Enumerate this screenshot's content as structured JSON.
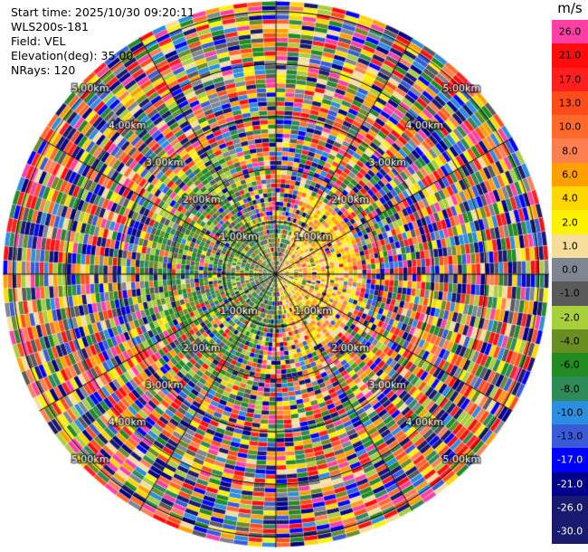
{
  "header": {
    "start_time": "Start time: 2025/10/30 09:20:11",
    "station": "WLS200s-181",
    "field": "Field: VEL",
    "elevation": "Elevation(deg): 35.00",
    "nrays": "NRays: 120"
  },
  "colorbar": {
    "unit": "m/s",
    "levels": [
      {
        "label": "26.0",
        "color": "#ff3fa6"
      },
      {
        "label": "21.0",
        "color": "#ff0d0d"
      },
      {
        "label": "17.0",
        "color": "#ff1f1f"
      },
      {
        "label": "13.0",
        "color": "#ff4d1a"
      },
      {
        "label": "10.0",
        "color": "#ff6a2b"
      },
      {
        "label": "8.0",
        "color": "#ff7f50"
      },
      {
        "label": "6.0",
        "color": "#ffa000"
      },
      {
        "label": "4.0",
        "color": "#ffd700"
      },
      {
        "label": "2.0",
        "color": "#fff200"
      },
      {
        "label": "1.0",
        "color": "#f5de9c"
      },
      {
        "label": "0.0",
        "color": "#7f8591"
      },
      {
        "label": "-1.0",
        "color": "#5a5a5a"
      },
      {
        "label": "-2.0",
        "color": "#a8cf3c"
      },
      {
        "label": "-4.0",
        "color": "#6b8e23"
      },
      {
        "label": "-6.0",
        "color": "#228b22"
      },
      {
        "label": "-8.0",
        "color": "#2e8b57"
      },
      {
        "label": "-10.0",
        "color": "#2b8ee0"
      },
      {
        "label": "-13.0",
        "color": "#3a5bd8"
      },
      {
        "label": "-17.0",
        "color": "#0000ff"
      },
      {
        "label": "-21.0",
        "color": "#00008b"
      },
      {
        "label": "-26.0",
        "color": "#191970"
      },
      {
        "label": "-30.0",
        "color": "#1a1a6e"
      }
    ]
  },
  "chart_data": {
    "type": "heatmap",
    "projection": "polar PPI",
    "field": "VEL",
    "units": "m/s",
    "nrays": 120,
    "range_rings_km": [
      1,
      2,
      3,
      4,
      5
    ],
    "range_ring_labels": [
      "1.00km",
      "2.00km",
      "3.00km",
      "4.00km",
      "5.00km"
    ],
    "max_range_km": 5.2,
    "spokes_deg": [
      0,
      30,
      60,
      90,
      120,
      150,
      180,
      210,
      240,
      270,
      300,
      330
    ],
    "value_range": [
      -30,
      26
    ],
    "notes_regions": {
      "near_east_sector": "yellow/orange values around 2 to 6 m/s",
      "near_west_sector": "green values around -4 to -8 m/s",
      "outer_ranges": "noisy, full spectrum"
    }
  }
}
